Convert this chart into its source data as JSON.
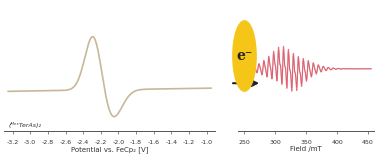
{
  "left_image_bg": "#f5f0e8",
  "right_image_bg": "#f0eeee",
  "arrow_color": "#222222",
  "electron_circle_color": "#f5c518",
  "electron_text": "e⁻",
  "cv_xlabel": "Potential vs. FeCp₂ [V]",
  "cv_xticks": [
    -3.2,
    -3.0,
    -2.8,
    -2.6,
    -2.4,
    -2.2,
    -2.0,
    -1.8,
    -1.6,
    -1.4,
    -1.2,
    -1.0
  ],
  "cv_xlim": [
    -3.3,
    -0.9
  ],
  "cv_ylim": [
    -0.6,
    1.2
  ],
  "cv_curve_color": "#c8b89a",
  "cv_curve_color2": "#d4a0a0",
  "epr_xlabel": "Field /mT",
  "epr_xticks": [
    250,
    300,
    350,
    400,
    450
  ],
  "epr_xlim": [
    240,
    460
  ],
  "epr_ylim": [
    -1.2,
    1.2
  ],
  "epr_curve_color": "#e05060",
  "epr_curve_color2": "#c08090",
  "left_label": "(ᴹᵉˢTerAs)₂",
  "background_color": "#ffffff"
}
